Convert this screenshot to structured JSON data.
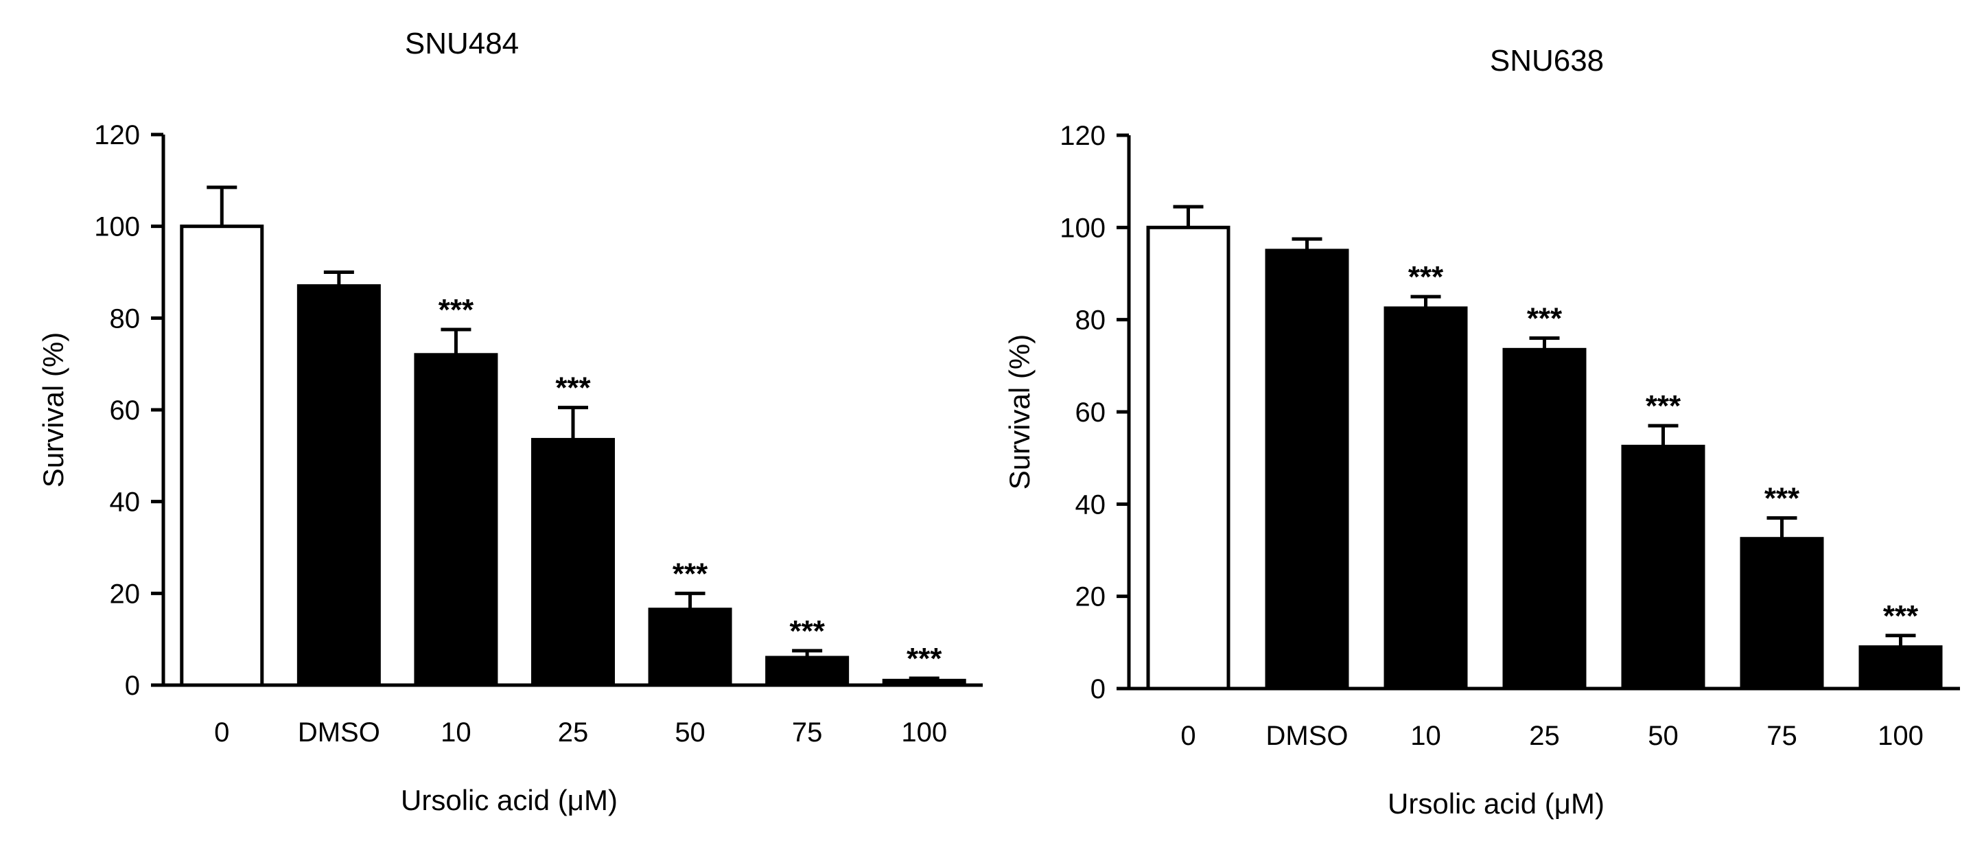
{
  "chart_data": [
    {
      "type": "bar",
      "title": "SNU484",
      "xlabel": "Ursolic acid (μM)",
      "ylabel": "Survival (%)",
      "ylim": [
        0,
        120
      ],
      "yticks": [
        0,
        20,
        40,
        60,
        80,
        100,
        120
      ],
      "grid": false,
      "categories": [
        "0",
        "DMSO",
        "10",
        "25",
        "50",
        "75",
        "100"
      ],
      "values": [
        100,
        87,
        72,
        53.5,
        16.5,
        6,
        1
      ],
      "errors": [
        8.5,
        3,
        5.5,
        7,
        3.5,
        1.5,
        0.5
      ],
      "fills": [
        "#ffffff",
        "#000000",
        "#000000",
        "#000000",
        "#000000",
        "#000000",
        "#000000"
      ],
      "annotations": [
        "",
        "",
        "***",
        "***",
        "***",
        "***",
        "***"
      ]
    },
    {
      "type": "bar",
      "title": "SNU638",
      "xlabel": "Ursolic acid (μM)",
      "ylabel": "Survival (%)",
      "ylim": [
        0,
        120
      ],
      "yticks": [
        0,
        20,
        40,
        60,
        80,
        100,
        120
      ],
      "grid": false,
      "categories": [
        "0",
        "DMSO",
        "10",
        "25",
        "50",
        "75",
        "100"
      ],
      "values": [
        100,
        95,
        82.5,
        73.5,
        52.5,
        32.5,
        9
      ],
      "errors": [
        4.5,
        2.5,
        2.5,
        2.5,
        4.5,
        4.5,
        2.5
      ],
      "fills": [
        "#ffffff",
        "#000000",
        "#000000",
        "#000000",
        "#000000",
        "#000000",
        "#000000"
      ],
      "annotations": [
        "",
        "",
        "***",
        "***",
        "***",
        "***",
        "***"
      ]
    }
  ]
}
